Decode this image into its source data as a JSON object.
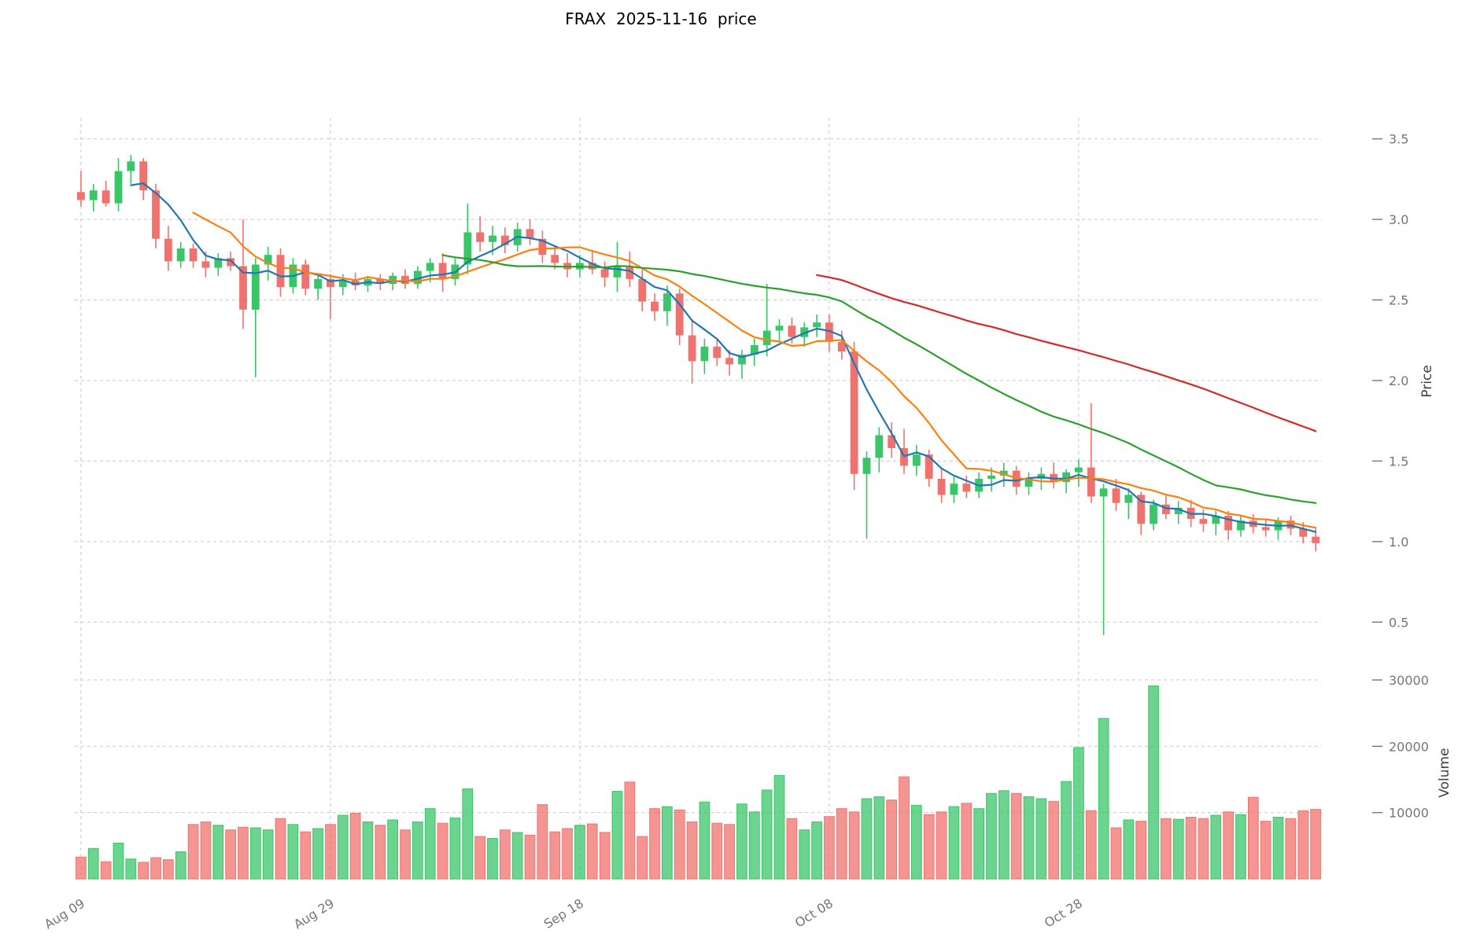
{
  "chart_data": {
    "type": "candlestick",
    "title": "FRAX  2025-11-16  price",
    "ylabel": "Price",
    "ylabel_lower": "Volume",
    "grid": true,
    "legend_position": "none",
    "x_tick_labels": [
      "Aug 09",
      "Aug 29",
      "Sep 18",
      "Oct 08",
      "Oct 28"
    ],
    "x_tick_indices": [
      0,
      20,
      40,
      60,
      80
    ],
    "price_ticks": [
      0.5,
      1.0,
      1.5,
      2.0,
      2.5,
      3.0,
      3.5
    ],
    "volume_ticks": [
      10000,
      20000,
      30000
    ],
    "price_axis_range": [
      0.36,
      3.63
    ],
    "volume_axis_range": [
      0,
      32000
    ],
    "colors": {
      "up": "#3ac569",
      "down": "#f0726e",
      "grid": "#c9c9c9",
      "tick_text": "#757575",
      "ma_blue": "#1f77b4",
      "ma_orange": "#ff7f0e",
      "ma_green": "#2ca02c",
      "ma_red": "#d62728"
    },
    "moving_averages": [
      {
        "name": "ma5",
        "window": 5,
        "color": "#1f77b4"
      },
      {
        "name": "ma10",
        "window": 10,
        "color": "#ff7f0e"
      },
      {
        "name": "ma30",
        "window": 30,
        "color": "#2ca02c"
      },
      {
        "name": "ma60",
        "window": 60,
        "color": "#d62728"
      }
    ],
    "columns": [
      "open",
      "high",
      "low",
      "close",
      "volume"
    ],
    "ohlcv": [
      [
        3.17,
        3.3,
        3.08,
        3.12,
        3300
      ],
      [
        3.12,
        3.22,
        3.05,
        3.18,
        4600
      ],
      [
        3.18,
        3.24,
        3.08,
        3.1,
        2600
      ],
      [
        3.1,
        3.38,
        3.05,
        3.3,
        5400
      ],
      [
        3.3,
        3.4,
        3.22,
        3.36,
        3000
      ],
      [
        3.36,
        3.38,
        3.12,
        3.18,
        2500
      ],
      [
        3.18,
        3.22,
        2.82,
        2.88,
        3200
      ],
      [
        2.88,
        2.96,
        2.68,
        2.74,
        2900
      ],
      [
        2.74,
        2.86,
        2.7,
        2.82,
        4100
      ],
      [
        2.82,
        2.85,
        2.7,
        2.74,
        8200
      ],
      [
        2.74,
        2.8,
        2.64,
        2.7,
        8600
      ],
      [
        2.7,
        2.79,
        2.65,
        2.76,
        8100
      ],
      [
        2.76,
        2.8,
        2.68,
        2.71,
        7400
      ],
      [
        2.71,
        3.0,
        2.32,
        2.44,
        7800
      ],
      [
        2.44,
        2.76,
        2.02,
        2.72,
        7700
      ],
      [
        2.72,
        2.83,
        2.62,
        2.78,
        7400
      ],
      [
        2.78,
        2.82,
        2.52,
        2.58,
        9100
      ],
      [
        2.58,
        2.76,
        2.54,
        2.72,
        8200
      ],
      [
        2.72,
        2.75,
        2.53,
        2.57,
        7100
      ],
      [
        2.57,
        2.66,
        2.5,
        2.63,
        7600
      ],
      [
        2.63,
        2.66,
        2.38,
        2.58,
        8200
      ],
      [
        2.58,
        2.66,
        2.53,
        2.62,
        9600
      ],
      [
        2.62,
        2.67,
        2.56,
        2.59,
        9900
      ],
      [
        2.59,
        2.65,
        2.55,
        2.63,
        8600
      ],
      [
        2.63,
        2.66,
        2.56,
        2.6,
        8100
      ],
      [
        2.6,
        2.67,
        2.56,
        2.65,
        8900
      ],
      [
        2.65,
        2.69,
        2.57,
        2.6,
        7400
      ],
      [
        2.6,
        2.71,
        2.57,
        2.68,
        8600
      ],
      [
        2.68,
        2.76,
        2.61,
        2.73,
        10600
      ],
      [
        2.73,
        2.79,
        2.55,
        2.63,
        8400
      ],
      [
        2.63,
        2.76,
        2.59,
        2.72,
        9200
      ],
      [
        2.72,
        3.1,
        2.66,
        2.92,
        13600
      ],
      [
        2.92,
        3.02,
        2.8,
        2.86,
        6400
      ],
      [
        2.86,
        2.96,
        2.78,
        2.9,
        6100
      ],
      [
        2.9,
        2.95,
        2.79,
        2.84,
        7400
      ],
      [
        2.84,
        2.98,
        2.8,
        2.94,
        7000
      ],
      [
        2.94,
        3.0,
        2.84,
        2.88,
        6600
      ],
      [
        2.88,
        2.93,
        2.73,
        2.78,
        11200
      ],
      [
        2.78,
        2.84,
        2.69,
        2.73,
        7100
      ],
      [
        2.73,
        2.79,
        2.64,
        2.69,
        7600
      ],
      [
        2.69,
        2.78,
        2.64,
        2.73,
        8100
      ],
      [
        2.73,
        2.8,
        2.66,
        2.69,
        8300
      ],
      [
        2.69,
        2.74,
        2.58,
        2.64,
        7000
      ],
      [
        2.64,
        2.86,
        2.55,
        2.71,
        13200
      ],
      [
        2.71,
        2.8,
        2.58,
        2.63,
        14600
      ],
      [
        2.63,
        2.69,
        2.43,
        2.49,
        6400
      ],
      [
        2.49,
        2.54,
        2.37,
        2.43,
        10600
      ],
      [
        2.43,
        2.59,
        2.34,
        2.54,
        10900
      ],
      [
        2.54,
        2.57,
        2.22,
        2.28,
        10400
      ],
      [
        2.28,
        2.38,
        1.98,
        2.12,
        8600
      ],
      [
        2.12,
        2.26,
        2.04,
        2.21,
        11600
      ],
      [
        2.21,
        2.26,
        2.09,
        2.14,
        8400
      ],
      [
        2.14,
        2.19,
        2.03,
        2.1,
        8200
      ],
      [
        2.1,
        2.19,
        2.01,
        2.16,
        11300
      ],
      [
        2.16,
        2.26,
        2.09,
        2.22,
        10100
      ],
      [
        2.22,
        2.6,
        2.15,
        2.31,
        13400
      ],
      [
        2.31,
        2.38,
        2.24,
        2.34,
        15600
      ],
      [
        2.34,
        2.39,
        2.23,
        2.27,
        9100
      ],
      [
        2.27,
        2.36,
        2.21,
        2.33,
        7400
      ],
      [
        2.33,
        2.41,
        2.27,
        2.36,
        8600
      ],
      [
        2.36,
        2.41,
        2.18,
        2.24,
        9400
      ],
      [
        2.24,
        2.31,
        2.13,
        2.18,
        10600
      ],
      [
        2.18,
        2.24,
        1.32,
        1.42,
        10100
      ],
      [
        1.42,
        1.56,
        1.02,
        1.52,
        12100
      ],
      [
        1.52,
        1.71,
        1.43,
        1.66,
        12400
      ],
      [
        1.66,
        1.74,
        1.52,
        1.58,
        11900
      ],
      [
        1.58,
        1.7,
        1.42,
        1.47,
        15400
      ],
      [
        1.47,
        1.6,
        1.41,
        1.54,
        11100
      ],
      [
        1.54,
        1.57,
        1.34,
        1.39,
        9700
      ],
      [
        1.39,
        1.45,
        1.24,
        1.29,
        10100
      ],
      [
        1.29,
        1.41,
        1.24,
        1.36,
        10900
      ],
      [
        1.36,
        1.41,
        1.27,
        1.31,
        11400
      ],
      [
        1.31,
        1.43,
        1.27,
        1.39,
        10600
      ],
      [
        1.39,
        1.46,
        1.31,
        1.41,
        12900
      ],
      [
        1.41,
        1.49,
        1.34,
        1.44,
        13300
      ],
      [
        1.44,
        1.47,
        1.29,
        1.34,
        12900
      ],
      [
        1.34,
        1.43,
        1.29,
        1.39,
        12400
      ],
      [
        1.39,
        1.46,
        1.32,
        1.42,
        12100
      ],
      [
        1.42,
        1.49,
        1.33,
        1.37,
        11700
      ],
      [
        1.37,
        1.45,
        1.3,
        1.43,
        14700
      ],
      [
        1.43,
        1.51,
        1.34,
        1.46,
        19800
      ],
      [
        1.46,
        1.86,
        1.24,
        1.28,
        10300
      ],
      [
        1.28,
        1.36,
        0.42,
        1.33,
        24200
      ],
      [
        1.33,
        1.39,
        1.19,
        1.24,
        7700
      ],
      [
        1.24,
        1.33,
        1.14,
        1.29,
        8900
      ],
      [
        1.29,
        1.31,
        1.04,
        1.11,
        8700
      ],
      [
        1.11,
        1.26,
        1.07,
        1.23,
        29100
      ],
      [
        1.23,
        1.29,
        1.14,
        1.17,
        9100
      ],
      [
        1.17,
        1.25,
        1.11,
        1.21,
        9000
      ],
      [
        1.21,
        1.26,
        1.09,
        1.14,
        9300
      ],
      [
        1.14,
        1.2,
        1.06,
        1.11,
        9100
      ],
      [
        1.11,
        1.19,
        1.04,
        1.16,
        9600
      ],
      [
        1.16,
        1.19,
        1.01,
        1.07,
        10100
      ],
      [
        1.07,
        1.16,
        1.03,
        1.13,
        9700
      ],
      [
        1.13,
        1.17,
        1.05,
        1.09,
        12300
      ],
      [
        1.09,
        1.14,
        1.03,
        1.07,
        8700
      ],
      [
        1.07,
        1.15,
        1.01,
        1.13,
        9300
      ],
      [
        1.13,
        1.16,
        1.04,
        1.08,
        9100
      ],
      [
        1.08,
        1.12,
        0.99,
        1.03,
        10300
      ],
      [
        1.03,
        1.08,
        0.94,
        0.99,
        10500
      ]
    ]
  }
}
